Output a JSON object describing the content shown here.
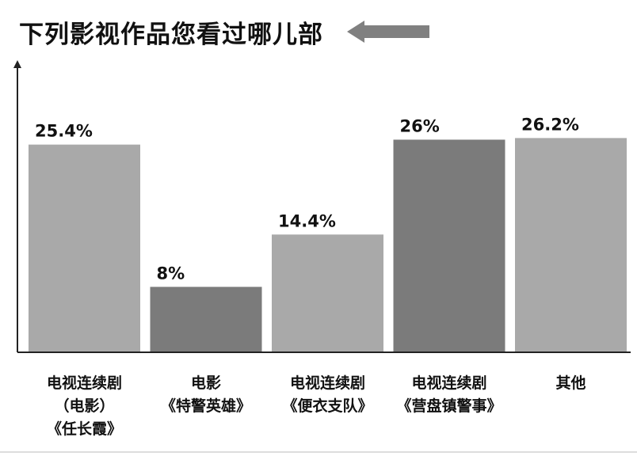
{
  "chart_data": {
    "type": "bar",
    "title": "下列影视作品您看过哪儿部",
    "categories": [
      [
        "电视连续剧",
        "（电影）",
        "《任长霞》"
      ],
      [
        "电影",
        "《特警英雄》"
      ],
      [
        "电视连续剧",
        "《便衣支队》"
      ],
      [
        "电视连续剧",
        "《营盘镇警事》"
      ],
      [
        "其他"
      ]
    ],
    "values": [
      25.4,
      8,
      14.4,
      26,
      26.2
    ],
    "value_labels": [
      "25.4%",
      "8%",
      "14.4%",
      "26%",
      "26.2%"
    ],
    "bar_colors": [
      "#a9a9a9",
      "#7b7b7b",
      "#a9a9a9",
      "#7b7b7b",
      "#a9a9a9"
    ],
    "ylim": [
      0,
      33.4
    ],
    "xlabel": "",
    "ylabel": "",
    "grid": false,
    "legend": "none"
  },
  "colors": {
    "arrow": "#808080",
    "axis": "#222222"
  }
}
